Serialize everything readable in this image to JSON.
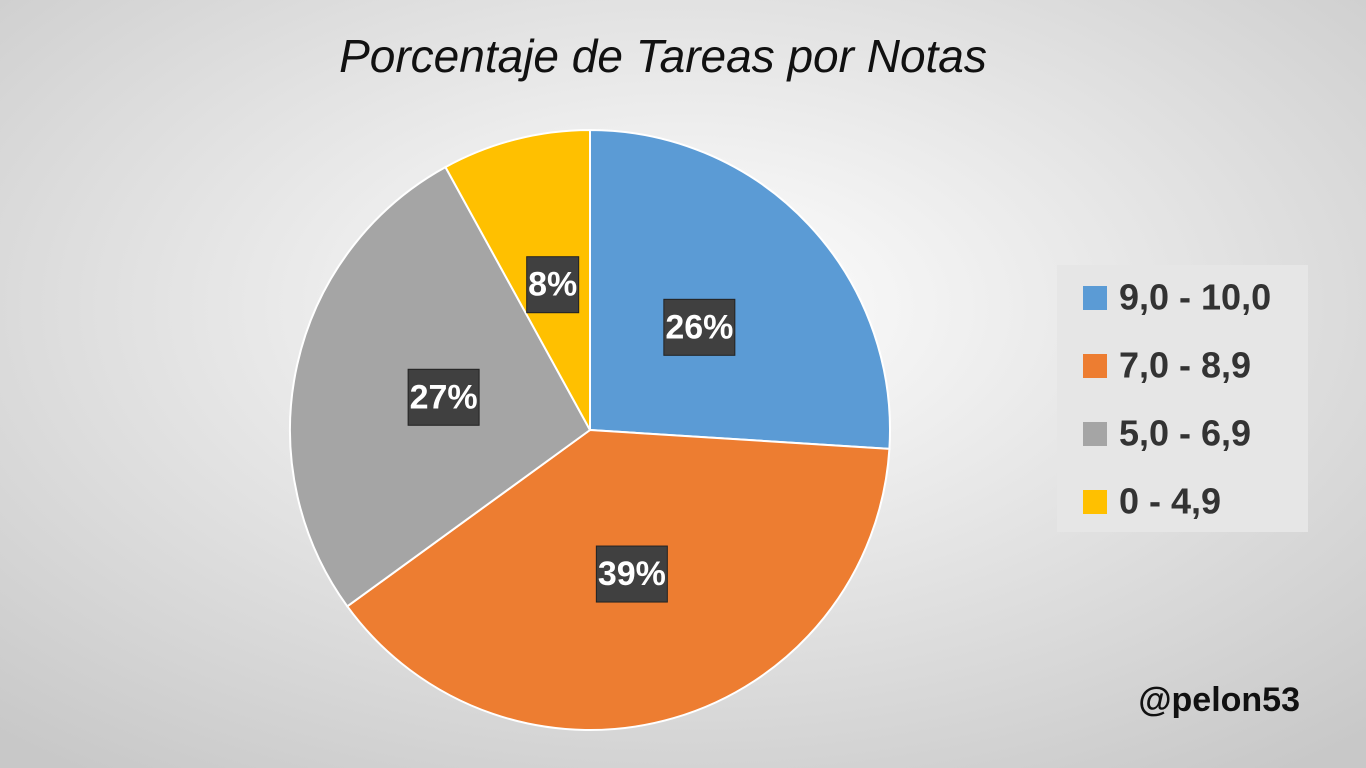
{
  "chart_data": {
    "type": "pie",
    "title": "Porcentaje de Tareas por Notas",
    "categories": [
      "9,0 - 10,0",
      "7,0 - 8,9",
      "5,0 - 6,9",
      "0 - 4,9"
    ],
    "values": [
      26,
      39,
      27,
      8
    ],
    "value_labels": [
      "26%",
      "39%",
      "27%",
      "8%"
    ],
    "colors": [
      "#5b9bd5",
      "#ed7d31",
      "#a5a5a5",
      "#ffc000"
    ],
    "legend": "right",
    "annotation": "@pelon53"
  }
}
